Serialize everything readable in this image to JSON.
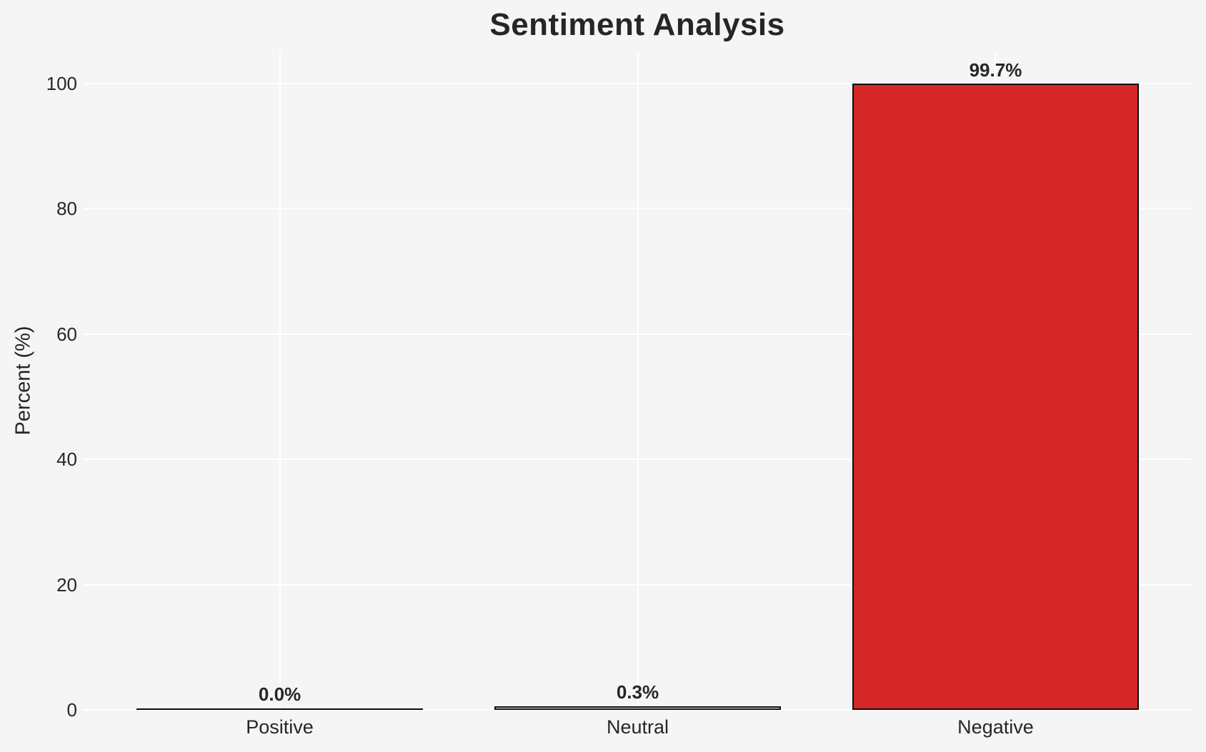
{
  "chart_data": {
    "type": "bar",
    "title": "Sentiment Analysis",
    "xlabel": "",
    "ylabel": "Percent (%)",
    "categories": [
      "Positive",
      "Neutral",
      "Negative"
    ],
    "values": [
      0.0,
      0.3,
      99.7
    ],
    "value_labels": [
      "0.0%",
      "0.3%",
      "99.7%"
    ],
    "yticks": [
      0,
      20,
      40,
      60,
      80,
      100
    ],
    "ytick_labels": [
      "0",
      "20",
      "40",
      "60",
      "80",
      "100"
    ],
    "ylim": [
      0,
      105
    ],
    "grid": true,
    "legend": false,
    "colors": {
      "background": "#f5f5f6",
      "gridline": "#ffffff",
      "text": "#262626",
      "bar_edge": "#0d0d0d",
      "bar_fills": [
        "none",
        "none",
        "#d62728"
      ]
    }
  }
}
